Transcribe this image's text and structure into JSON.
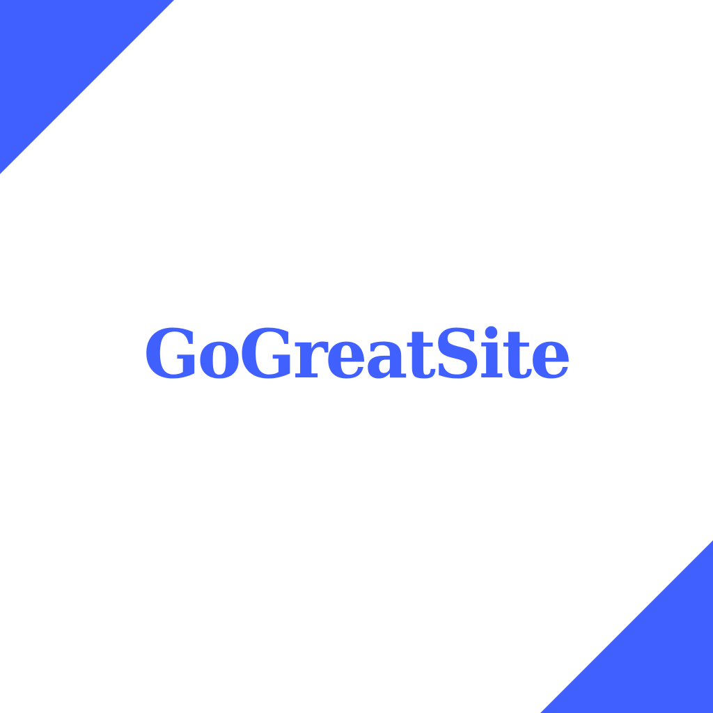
{
  "brand": {
    "name": "GoGreatSite"
  },
  "colors": {
    "background": "#ffffff",
    "accent": "#4061FF"
  }
}
